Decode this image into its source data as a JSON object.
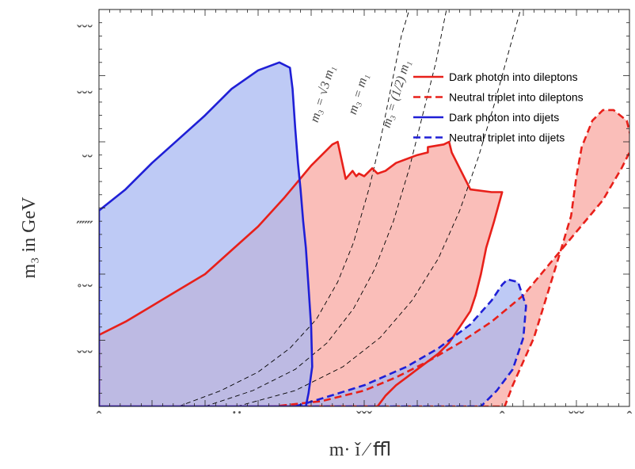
{
  "chart_data": {
    "type": "area",
    "title": "",
    "xlabel": "m· ǐ ⁄ ﬄ",
    "ylabel": "m₃ in GeV",
    "xlim": [
      0,
      1000
    ],
    "ylim": [
      0,
      1500
    ],
    "x_tick_labels": [
      "ˆ",
      "˙˙",
      "ˇˇˇ",
      "ˆ",
      "˘˘˘",
      "ˆ"
    ],
    "y_tick_labels": [
      "ˇ˘˘",
      "˘˘˘",
      "˘˘",
      "˝˝˝",
      "˚˘˘",
      "ˇ˘˘"
    ],
    "curve_labels": [
      "m₃ = √3 m₁",
      "m₃ = m₁",
      "m₃ = (1/2) m₁"
    ],
    "colors": {
      "red": "#e8201a",
      "blue": "#1f1fd6",
      "red_fill": "#f8a8a2",
      "blue_fill": "#a8b8f2",
      "overlap_fill": "#c48aa8"
    },
    "legend": {
      "placement": "top-right",
      "entries": [
        {
          "label": "Dark photon into dileptons",
          "color": "#e8201a",
          "dash": "solid"
        },
        {
          "label": "Neutral triplet into dileptons",
          "color": "#e8201a",
          "dash": "dashed"
        },
        {
          "label": "Dark photon into dijets",
          "color": "#1f1fd6",
          "dash": "solid"
        },
        {
          "label": "Neutral triplet into dijets",
          "color": "#1f1fd6",
          "dash": "dashed"
        }
      ]
    },
    "series": [
      {
        "key": "dp_dilepton",
        "color": "#e8201a",
        "dash": "solid",
        "points": [
          [
            0,
            0
          ],
          [
            0,
            270
          ],
          [
            50,
            320
          ],
          [
            100,
            380
          ],
          [
            150,
            440
          ],
          [
            200,
            500
          ],
          [
            250,
            590
          ],
          [
            300,
            680
          ],
          [
            350,
            790
          ],
          [
            400,
            910
          ],
          [
            440,
            990
          ],
          [
            450,
            1000
          ],
          [
            465,
            860
          ],
          [
            478,
            890
          ],
          [
            485,
            870
          ],
          [
            490,
            880
          ],
          [
            500,
            870
          ],
          [
            505,
            880
          ],
          [
            515,
            900
          ],
          [
            525,
            880
          ],
          [
            540,
            890
          ],
          [
            560,
            920
          ],
          [
            600,
            950
          ],
          [
            620,
            960
          ],
          [
            620,
            980
          ],
          [
            650,
            990
          ],
          [
            660,
            1000
          ],
          [
            665,
            960
          ],
          [
            700,
            820
          ],
          [
            740,
            810
          ],
          [
            760,
            810
          ],
          [
            745,
            700
          ],
          [
            730,
            600
          ],
          [
            720,
            500
          ],
          [
            710,
            420
          ],
          [
            700,
            360
          ],
          [
            680,
            300
          ],
          [
            660,
            240
          ],
          [
            640,
            200
          ],
          [
            620,
            170
          ],
          [
            600,
            140
          ],
          [
            580,
            110
          ],
          [
            560,
            80
          ],
          [
            540,
            40
          ],
          [
            525,
            0
          ],
          [
            500,
            0
          ],
          [
            450,
            0
          ],
          [
            400,
            0
          ],
          [
            350,
            0
          ],
          [
            300,
            0
          ],
          [
            250,
            0
          ],
          [
            200,
            0
          ],
          [
            150,
            0
          ],
          [
            100,
            0
          ],
          [
            50,
            0
          ],
          [
            0,
            0
          ]
        ]
      },
      {
        "key": "nt_dilepton",
        "color": "#e8201a",
        "dash": "dashed",
        "points": [
          [
            320,
            0
          ],
          [
            330,
            0
          ],
          [
            420,
            20
          ],
          [
            500,
            60
          ],
          [
            560,
            110
          ],
          [
            620,
            170
          ],
          [
            680,
            240
          ],
          [
            740,
            320
          ],
          [
            800,
            420
          ],
          [
            850,
            540
          ],
          [
            900,
            660
          ],
          [
            950,
            780
          ],
          [
            985,
            900
          ],
          [
            1000,
            960
          ],
          [
            1005,
            1000
          ],
          [
            995,
            1080
          ],
          [
            970,
            1120
          ],
          [
            950,
            1120
          ],
          [
            930,
            1080
          ],
          [
            910,
            980
          ],
          [
            900,
            870
          ],
          [
            890,
            720
          ],
          [
            860,
            520
          ],
          [
            820,
            260
          ],
          [
            780,
            80
          ],
          [
            765,
            0
          ],
          [
            320,
            0
          ]
        ]
      },
      {
        "key": "dp_dijet",
        "color": "#1f1fd6",
        "dash": "solid",
        "points": [
          [
            0,
            0
          ],
          [
            0,
            740
          ],
          [
            50,
            820
          ],
          [
            100,
            920
          ],
          [
            150,
            1010
          ],
          [
            200,
            1100
          ],
          [
            250,
            1200
          ],
          [
            300,
            1270
          ],
          [
            340,
            1300
          ],
          [
            360,
            1280
          ],
          [
            365,
            1200
          ],
          [
            370,
            1050
          ],
          [
            375,
            920
          ],
          [
            380,
            820
          ],
          [
            385,
            700
          ],
          [
            390,
            600
          ],
          [
            395,
            450
          ],
          [
            400,
            300
          ],
          [
            402,
            150
          ],
          [
            395,
            50
          ],
          [
            390,
            0
          ],
          [
            0,
            0
          ]
        ]
      },
      {
        "key": "nt_dijet",
        "color": "#1f1fd6",
        "dash": "dashed",
        "points": [
          [
            370,
            0
          ],
          [
            420,
            30
          ],
          [
            500,
            80
          ],
          [
            580,
            150
          ],
          [
            640,
            220
          ],
          [
            700,
            310
          ],
          [
            740,
            400
          ],
          [
            760,
            460
          ],
          [
            770,
            480
          ],
          [
            790,
            470
          ],
          [
            805,
            380
          ],
          [
            800,
            260
          ],
          [
            780,
            140
          ],
          [
            750,
            60
          ],
          [
            720,
            0
          ],
          [
            370,
            0
          ]
        ]
      },
      {
        "key": "curve_sqrt3",
        "color": "#000000",
        "dash": "thin-dashed",
        "points": [
          [
            150,
            0
          ],
          [
            230,
            60
          ],
          [
            300,
            130
          ],
          [
            360,
            220
          ],
          [
            410,
            330
          ],
          [
            450,
            470
          ],
          [
            480,
            620
          ],
          [
            510,
            830
          ],
          [
            530,
            1000
          ],
          [
            550,
            1200
          ],
          [
            570,
            1400
          ],
          [
            585,
            1500
          ]
        ]
      },
      {
        "key": "curve_equal",
        "color": "#000000",
        "dash": "thin-dashed",
        "points": [
          [
            200,
            0
          ],
          [
            290,
            60
          ],
          [
            370,
            140
          ],
          [
            430,
            240
          ],
          [
            480,
            370
          ],
          [
            520,
            520
          ],
          [
            555,
            700
          ],
          [
            585,
            900
          ],
          [
            610,
            1100
          ],
          [
            635,
            1300
          ],
          [
            655,
            1500
          ]
        ]
      },
      {
        "key": "curve_half",
        "color": "#000000",
        "dash": "thin-dashed",
        "points": [
          [
            260,
            0
          ],
          [
            370,
            60
          ],
          [
            460,
            150
          ],
          [
            530,
            260
          ],
          [
            590,
            400
          ],
          [
            640,
            560
          ],
          [
            680,
            740
          ],
          [
            715,
            940
          ],
          [
            745,
            1140
          ],
          [
            775,
            1360
          ],
          [
            795,
            1500
          ]
        ]
      }
    ]
  }
}
